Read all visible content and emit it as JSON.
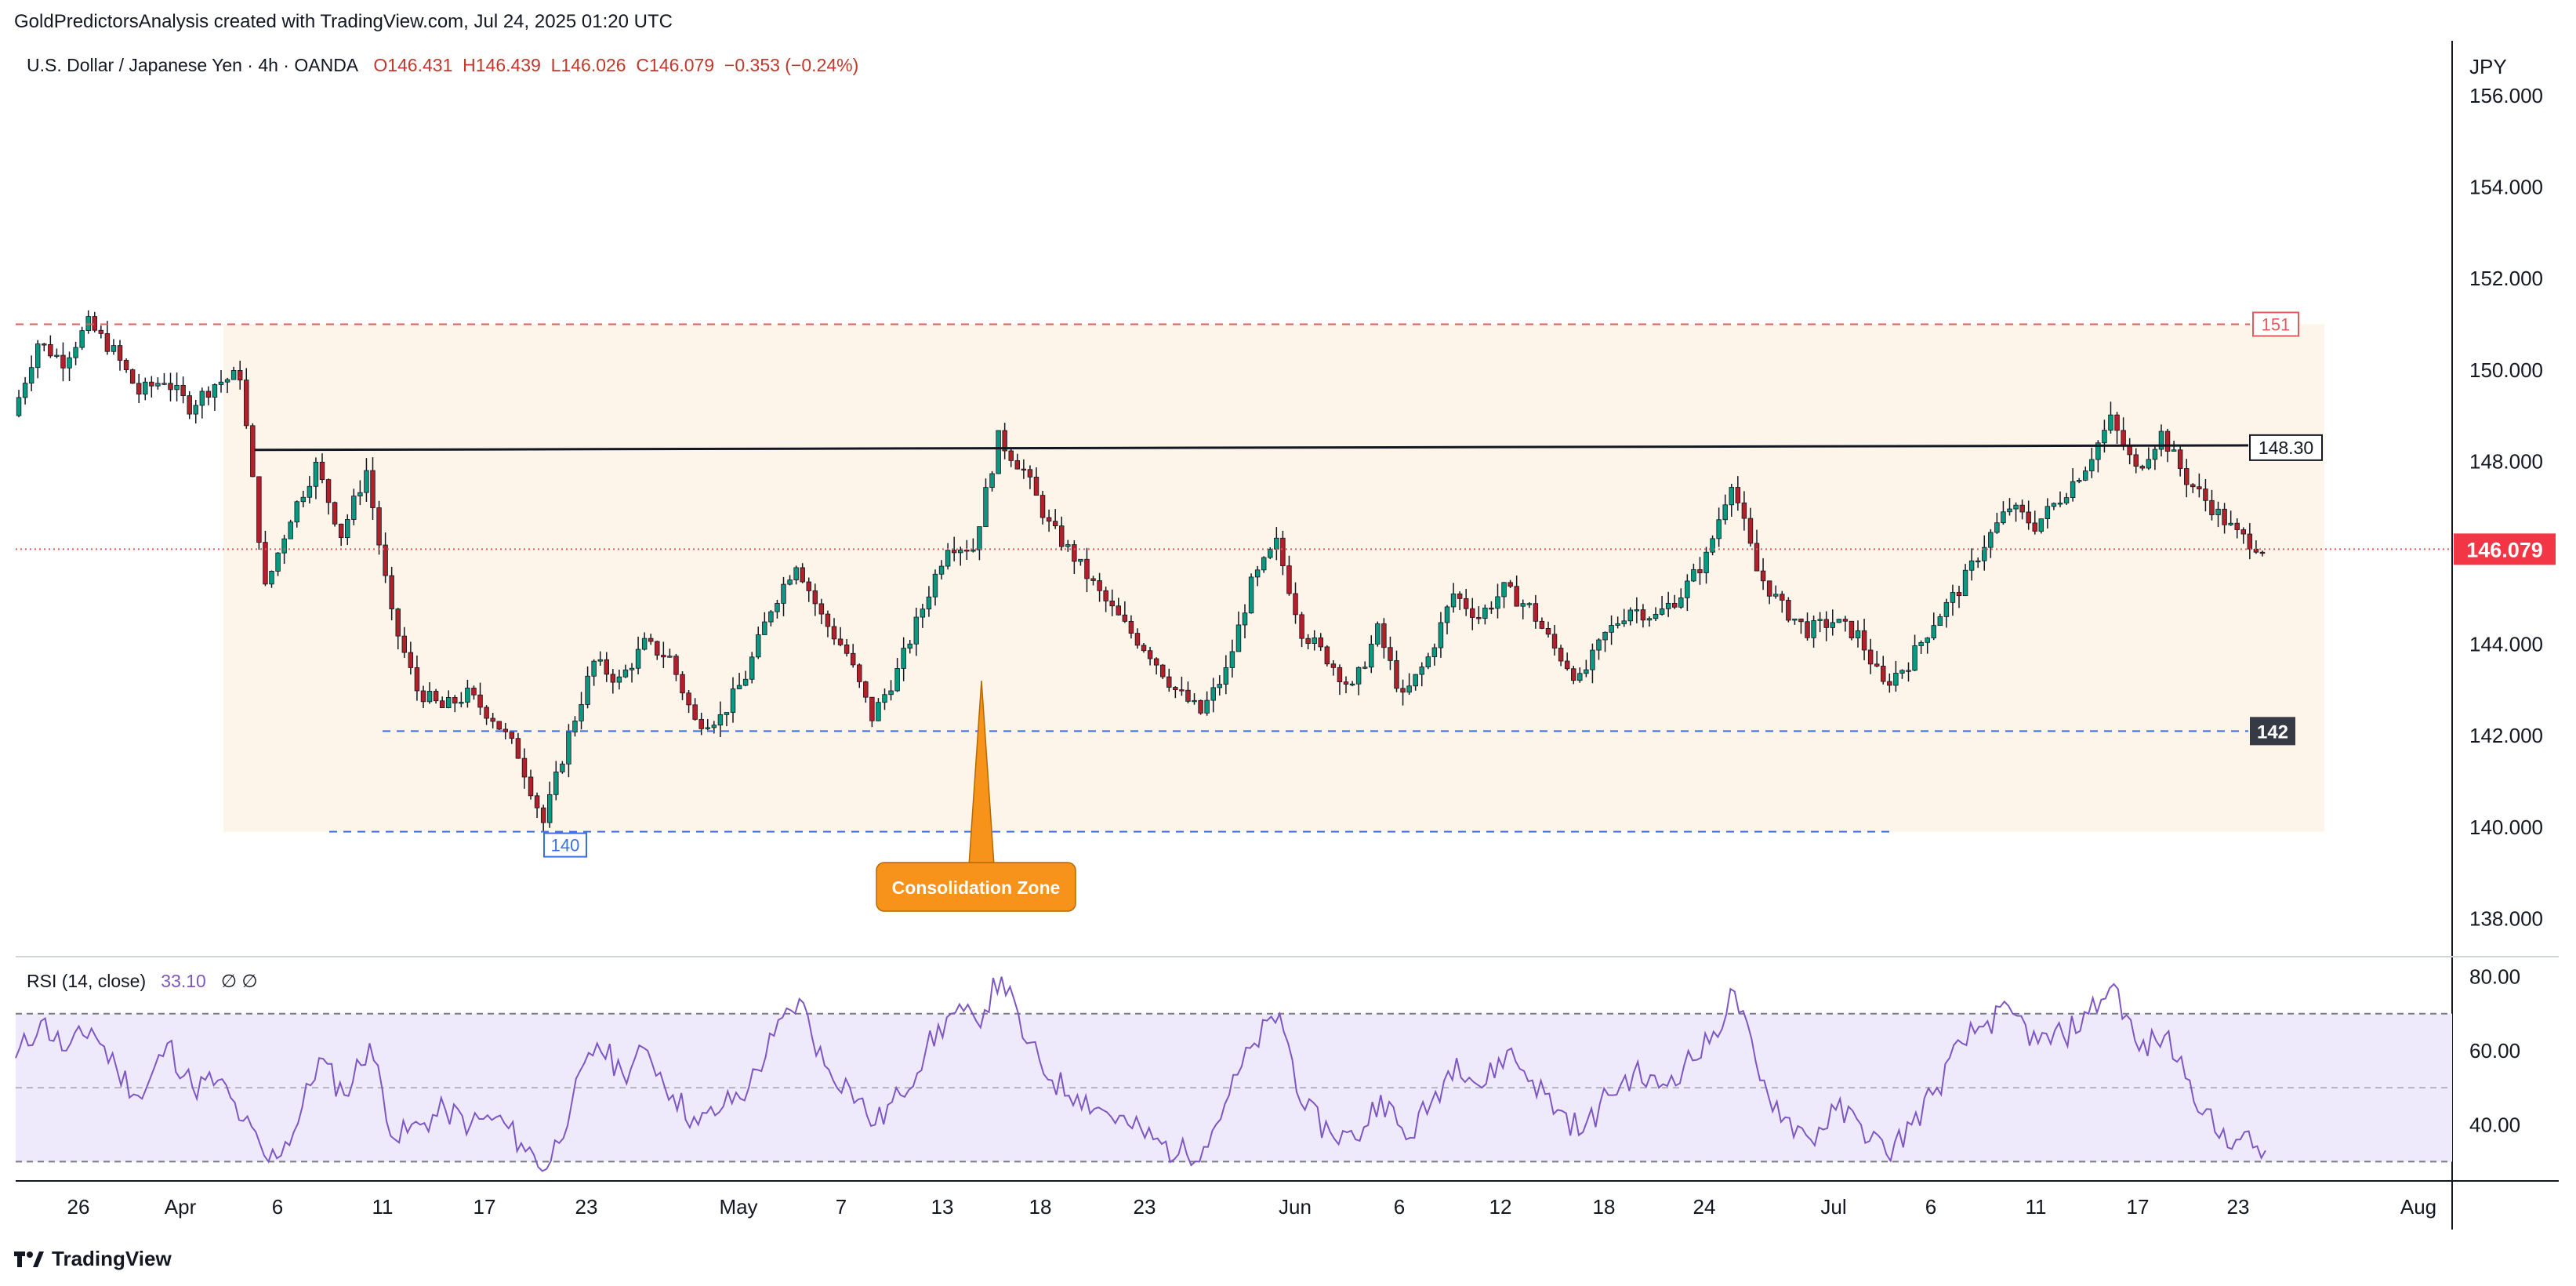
{
  "header": "GoldPredictorsAnalysis created with TradingView.com, Jul 24, 2025 01:20 UTC",
  "symbol": {
    "name": "U.S. Dollar / Japanese Yen · 4h · OANDA",
    "open": "O146.431",
    "high": "H146.439",
    "low": "L146.026",
    "close": "C146.079",
    "change": "−0.353 (−0.24%)"
  },
  "currency": "JPY",
  "footer_brand": "TradingView",
  "colors": {
    "up": "#089981",
    "down": "#b2202a",
    "wick": "#131722",
    "resistance": "#e05d5d",
    "support": "#3b6fe0",
    "rsi": "#7e57c2",
    "zone": "#fdf4ea",
    "callout": "#f7931a"
  },
  "chart_data": {
    "type": "candlestick",
    "title": "U.S. Dollar / Japanese Yen · 4h · OANDA",
    "ylim": [
      137.2,
      157.2
    ],
    "y_ticks": [
      "156.000",
      "154.000",
      "152.000",
      "150.000",
      "148.000",
      "146.000",
      "144.000",
      "142.000",
      "140.000",
      "138.000"
    ],
    "x_ticks": [
      "26",
      "Apr",
      "6",
      "11",
      "17",
      "23",
      "May",
      "7",
      "13",
      "18",
      "23",
      "Jun",
      "6",
      "12",
      "18",
      "24",
      "Jul",
      "6",
      "11",
      "17",
      "23",
      "Aug"
    ],
    "price_path": [
      [
        0,
        149.0
      ],
      [
        1,
        150.6
      ],
      [
        2,
        150.2
      ],
      [
        3,
        151.0
      ],
      [
        4,
        150.4
      ],
      [
        5,
        149.5
      ],
      [
        6,
        149.8
      ],
      [
        7,
        149.2
      ],
      [
        8,
        149.7
      ],
      [
        9,
        149.9
      ],
      [
        10,
        145.2
      ],
      [
        11,
        146.8
      ],
      [
        12,
        147.9
      ],
      [
        13,
        146.4
      ],
      [
        14,
        147.8
      ],
      [
        15,
        144.6
      ],
      [
        16,
        143.0
      ],
      [
        17,
        142.6
      ],
      [
        18,
        142.9
      ],
      [
        19,
        142.4
      ],
      [
        20,
        141.6
      ],
      [
        21,
        140.1
      ],
      [
        22,
        142.0
      ],
      [
        23,
        143.6
      ],
      [
        24,
        143.2
      ],
      [
        25,
        144.0
      ],
      [
        26,
        143.7
      ],
      [
        27,
        142.3
      ],
      [
        28,
        142.4
      ],
      [
        29,
        143.3
      ],
      [
        30,
        144.8
      ],
      [
        31,
        145.8
      ],
      [
        32,
        144.6
      ],
      [
        33,
        143.8
      ],
      [
        34,
        142.4
      ],
      [
        35,
        143.4
      ],
      [
        36,
        144.8
      ],
      [
        37,
        146.2
      ],
      [
        38,
        146.1
      ],
      [
        39,
        148.5
      ],
      [
        40,
        147.8
      ],
      [
        41,
        146.6
      ],
      [
        42,
        145.9
      ],
      [
        43,
        145.1
      ],
      [
        44,
        144.4
      ],
      [
        45,
        143.8
      ],
      [
        46,
        143.0
      ],
      [
        47,
        142.5
      ],
      [
        48,
        143.4
      ],
      [
        49,
        145.3
      ],
      [
        50,
        146.2
      ],
      [
        51,
        144.3
      ],
      [
        52,
        143.7
      ],
      [
        53,
        143.0
      ],
      [
        54,
        144.3
      ],
      [
        55,
        142.8
      ],
      [
        56,
        143.7
      ],
      [
        57,
        145.1
      ],
      [
        58,
        144.6
      ],
      [
        59,
        145.2
      ],
      [
        60,
        144.8
      ],
      [
        61,
        143.9
      ],
      [
        62,
        143.2
      ],
      [
        63,
        144.2
      ],
      [
        64,
        144.8
      ],
      [
        65,
        144.6
      ],
      [
        66,
        145.1
      ],
      [
        67,
        145.9
      ],
      [
        68,
        147.6
      ],
      [
        69,
        145.6
      ],
      [
        70,
        144.8
      ],
      [
        71,
        144.3
      ],
      [
        72,
        144.5
      ],
      [
        73,
        144.2
      ],
      [
        74,
        143.1
      ],
      [
        75,
        143.6
      ],
      [
        76,
        144.5
      ],
      [
        77,
        145.2
      ],
      [
        78,
        146.2
      ],
      [
        79,
        147.0
      ],
      [
        80,
        146.6
      ],
      [
        81,
        147.2
      ],
      [
        82,
        147.9
      ],
      [
        83,
        148.9
      ],
      [
        84,
        147.8
      ],
      [
        85,
        148.6
      ],
      [
        86,
        147.6
      ],
      [
        87,
        147.0
      ],
      [
        88,
        146.4
      ],
      [
        89,
        146.1
      ]
    ],
    "levels": [
      {
        "label": "151",
        "value": 151.0,
        "style": "dashed",
        "color": "resistance"
      },
      {
        "label": "148.30",
        "value": 148.3,
        "style": "solid",
        "color": "black"
      },
      {
        "label": "146.079",
        "value": 146.079,
        "style": "dotted",
        "color": "current"
      },
      {
        "label": "142",
        "value": 142.1,
        "style": "dashed",
        "color": "support"
      },
      {
        "label": "140",
        "value": 139.9,
        "style": "dashed",
        "color": "support"
      }
    ],
    "annotation": "Consolidation Zone",
    "rsi": {
      "label": "RSI (14, close)",
      "value": "33.10",
      "extra": "∅ ∅",
      "ylim": [
        25,
        85
      ],
      "ticks": [
        "80.00",
        "60.00",
        "40.00"
      ],
      "band": [
        30,
        70
      ],
      "values": [
        58,
        68,
        60,
        66,
        55,
        47,
        62,
        50,
        52,
        41,
        30,
        38,
        58,
        48,
        62,
        36,
        40,
        44,
        40,
        42,
        35,
        28,
        46,
        62,
        54,
        60,
        48,
        40,
        45,
        50,
        64,
        74,
        56,
        50,
        40,
        48,
        60,
        70,
        68,
        80,
        62,
        52,
        48,
        44,
        40,
        36,
        32,
        34,
        48,
        62,
        70,
        44,
        38,
        36,
        48,
        36,
        46,
        58,
        50,
        60,
        52,
        44,
        38,
        48,
        54,
        50,
        56,
        62,
        76,
        52,
        42,
        36,
        44,
        40,
        32,
        40,
        50,
        62,
        68,
        70,
        62,
        64,
        70,
        78,
        60,
        64,
        52,
        38,
        36,
        33
      ]
    }
  }
}
